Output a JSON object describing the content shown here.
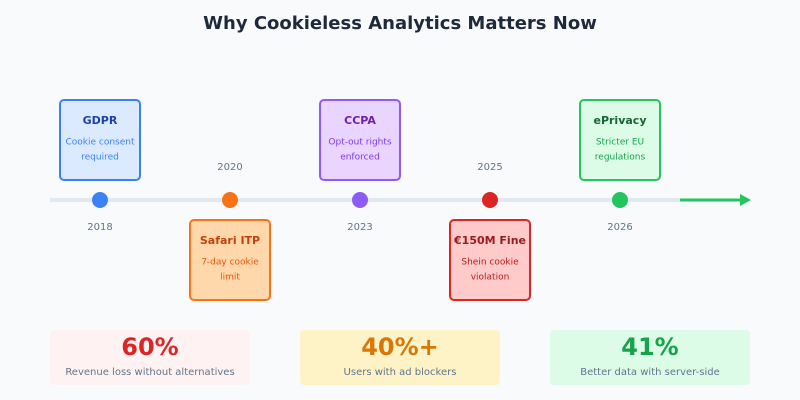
{
  "title": "Why Cookieless Analytics Matters Now",
  "events": [
    {
      "year": "2018",
      "label": "GDPR",
      "description": [
        "Cookie consent",
        "required"
      ]
    },
    {
      "year": "2020",
      "label": "Safari ITP",
      "description": [
        "7-day cookie",
        "limit"
      ]
    },
    {
      "year": "2023",
      "label": "CCPA",
      "description": [
        "Opt-out rights",
        "enforced"
      ]
    },
    {
      "year": "2025",
      "label": "€150M Fine",
      "description": [
        "Shein cookie",
        "violation"
      ]
    },
    {
      "year": "2026",
      "label": "ePrivacy",
      "description": [
        "Stricter EU",
        "regulations"
      ]
    }
  ],
  "stats": [
    {
      "value": "60%",
      "label": "Revenue loss without alternatives"
    },
    {
      "value": "40%+",
      "label": "Users with ad blockers"
    },
    {
      "value": "41%",
      "label": "Better data with server-side"
    }
  ]
}
